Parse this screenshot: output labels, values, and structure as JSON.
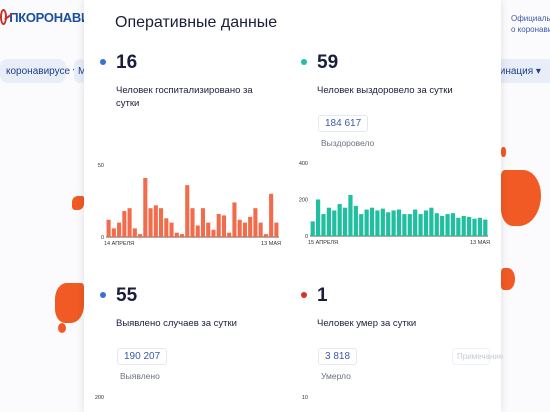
{
  "background": {
    "logo_text": "ПКОРОНАВИ",
    "left_pill": "коронавирусе ▾",
    "left_pill2": "М",
    "right_pill": "цинация ▾",
    "right_text": [
      "Официальн",
      "о коронавир"
    ]
  },
  "panel": {
    "title": "Оперативные данные"
  },
  "stats": {
    "hospitalized": {
      "value": "16",
      "desc": "Человек госпитализировано за сутки",
      "color": "#3b6fd6"
    },
    "recovered": {
      "value": "59",
      "desc": "Человек выздоровело за сутки",
      "total": "184 617",
      "total_label": "Выздоровело",
      "color": "#1fbf9f"
    },
    "cases": {
      "value": "55",
      "desc": "Выявлено случаев за сутки",
      "total": "190 207",
      "total_label": "Выявлено",
      "color": "#3b6fd6"
    },
    "deaths": {
      "value": "1",
      "desc": "Человек умер за сутки",
      "total": "3 818",
      "total_label": "Умерло",
      "hint": "Примечание",
      "color": "#d93025"
    }
  },
  "chart_data": [
    {
      "type": "bar",
      "title": "",
      "color": "#f26b4a",
      "x_start_label": "14 АПРЕЛЯ",
      "x_end_label": "13 МАЯ",
      "ylim": [
        0,
        50
      ],
      "yticks": [
        "50",
        "0"
      ],
      "values": [
        12,
        6,
        10,
        18,
        20,
        6,
        2,
        41,
        20,
        22,
        20,
        13,
        10,
        3,
        2,
        36,
        20,
        8,
        20,
        10,
        5,
        16,
        15,
        3,
        24,
        12,
        10,
        14,
        20,
        10,
        2,
        30,
        10
      ]
    },
    {
      "type": "bar",
      "title": "",
      "color": "#1fbf9f",
      "x_start_label": "15 АПРЕЛЯ",
      "x_end_label": "13 МАЯ",
      "ylim": [
        0,
        400
      ],
      "yticks": [
        "400",
        "200",
        "0"
      ],
      "values": [
        80,
        200,
        120,
        155,
        140,
        175,
        155,
        225,
        165,
        120,
        145,
        155,
        140,
        150,
        130,
        140,
        145,
        120,
        120,
        145,
        120,
        140,
        155,
        125,
        110,
        120,
        125,
        100,
        110,
        105,
        95,
        100,
        90
      ]
    },
    {
      "type": "bar",
      "title": "",
      "color": "#3b6fd6",
      "ylim": [
        0,
        200
      ],
      "yticks": [
        "200"
      ],
      "values": []
    },
    {
      "type": "bar",
      "title": "",
      "color": "#d93025",
      "ylim": [
        0,
        10
      ],
      "yticks": [
        "10"
      ],
      "values": []
    }
  ]
}
